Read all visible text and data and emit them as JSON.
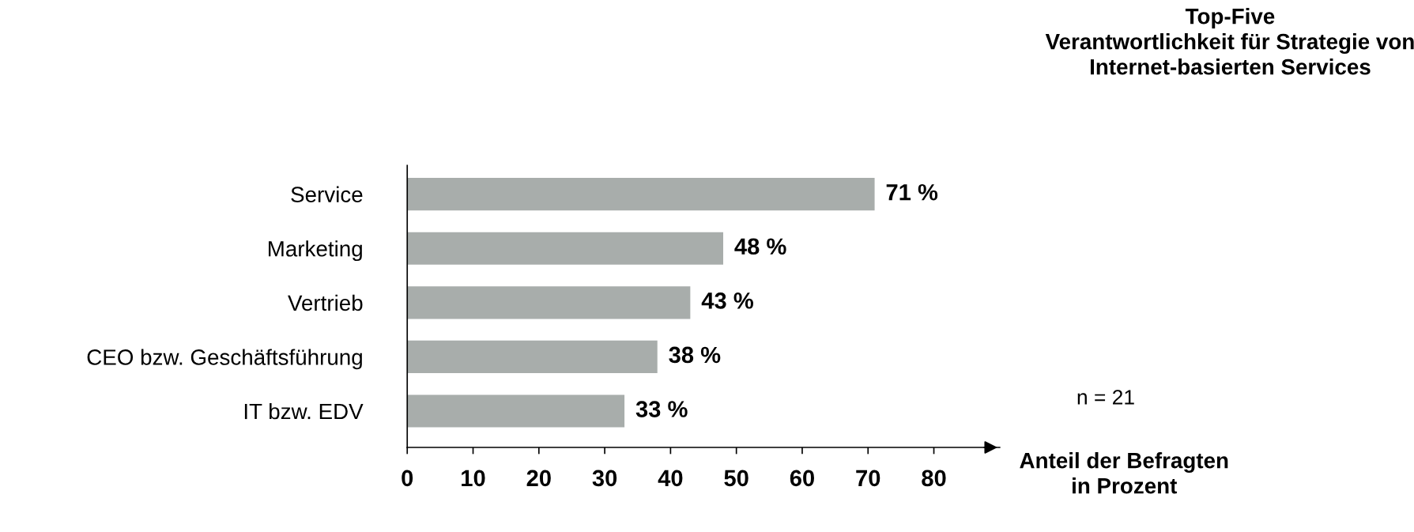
{
  "chart_data": {
    "type": "bar",
    "orientation": "horizontal",
    "title": "Top-Five\nVerantwortlichkeit für Strategie von\nInternet-basierten Services",
    "xlabel": "Anteil der Befragten\nin Prozent",
    "categories": [
      "Service",
      "Marketing",
      "Vertrieb",
      "CEO bzw. Geschäftsführung",
      "IT bzw. EDV"
    ],
    "values": [
      71,
      48,
      43,
      38,
      33
    ],
    "value_labels": [
      "71 %",
      "48 %",
      "43 %",
      "38 %",
      "33 %"
    ],
    "color": "#a8adab",
    "xlim": [
      0,
      90
    ],
    "xticks": [
      0,
      10,
      20,
      30,
      40,
      50,
      60,
      70,
      80
    ],
    "grid": false,
    "legend": false,
    "annotations": [
      "n = 21"
    ]
  }
}
